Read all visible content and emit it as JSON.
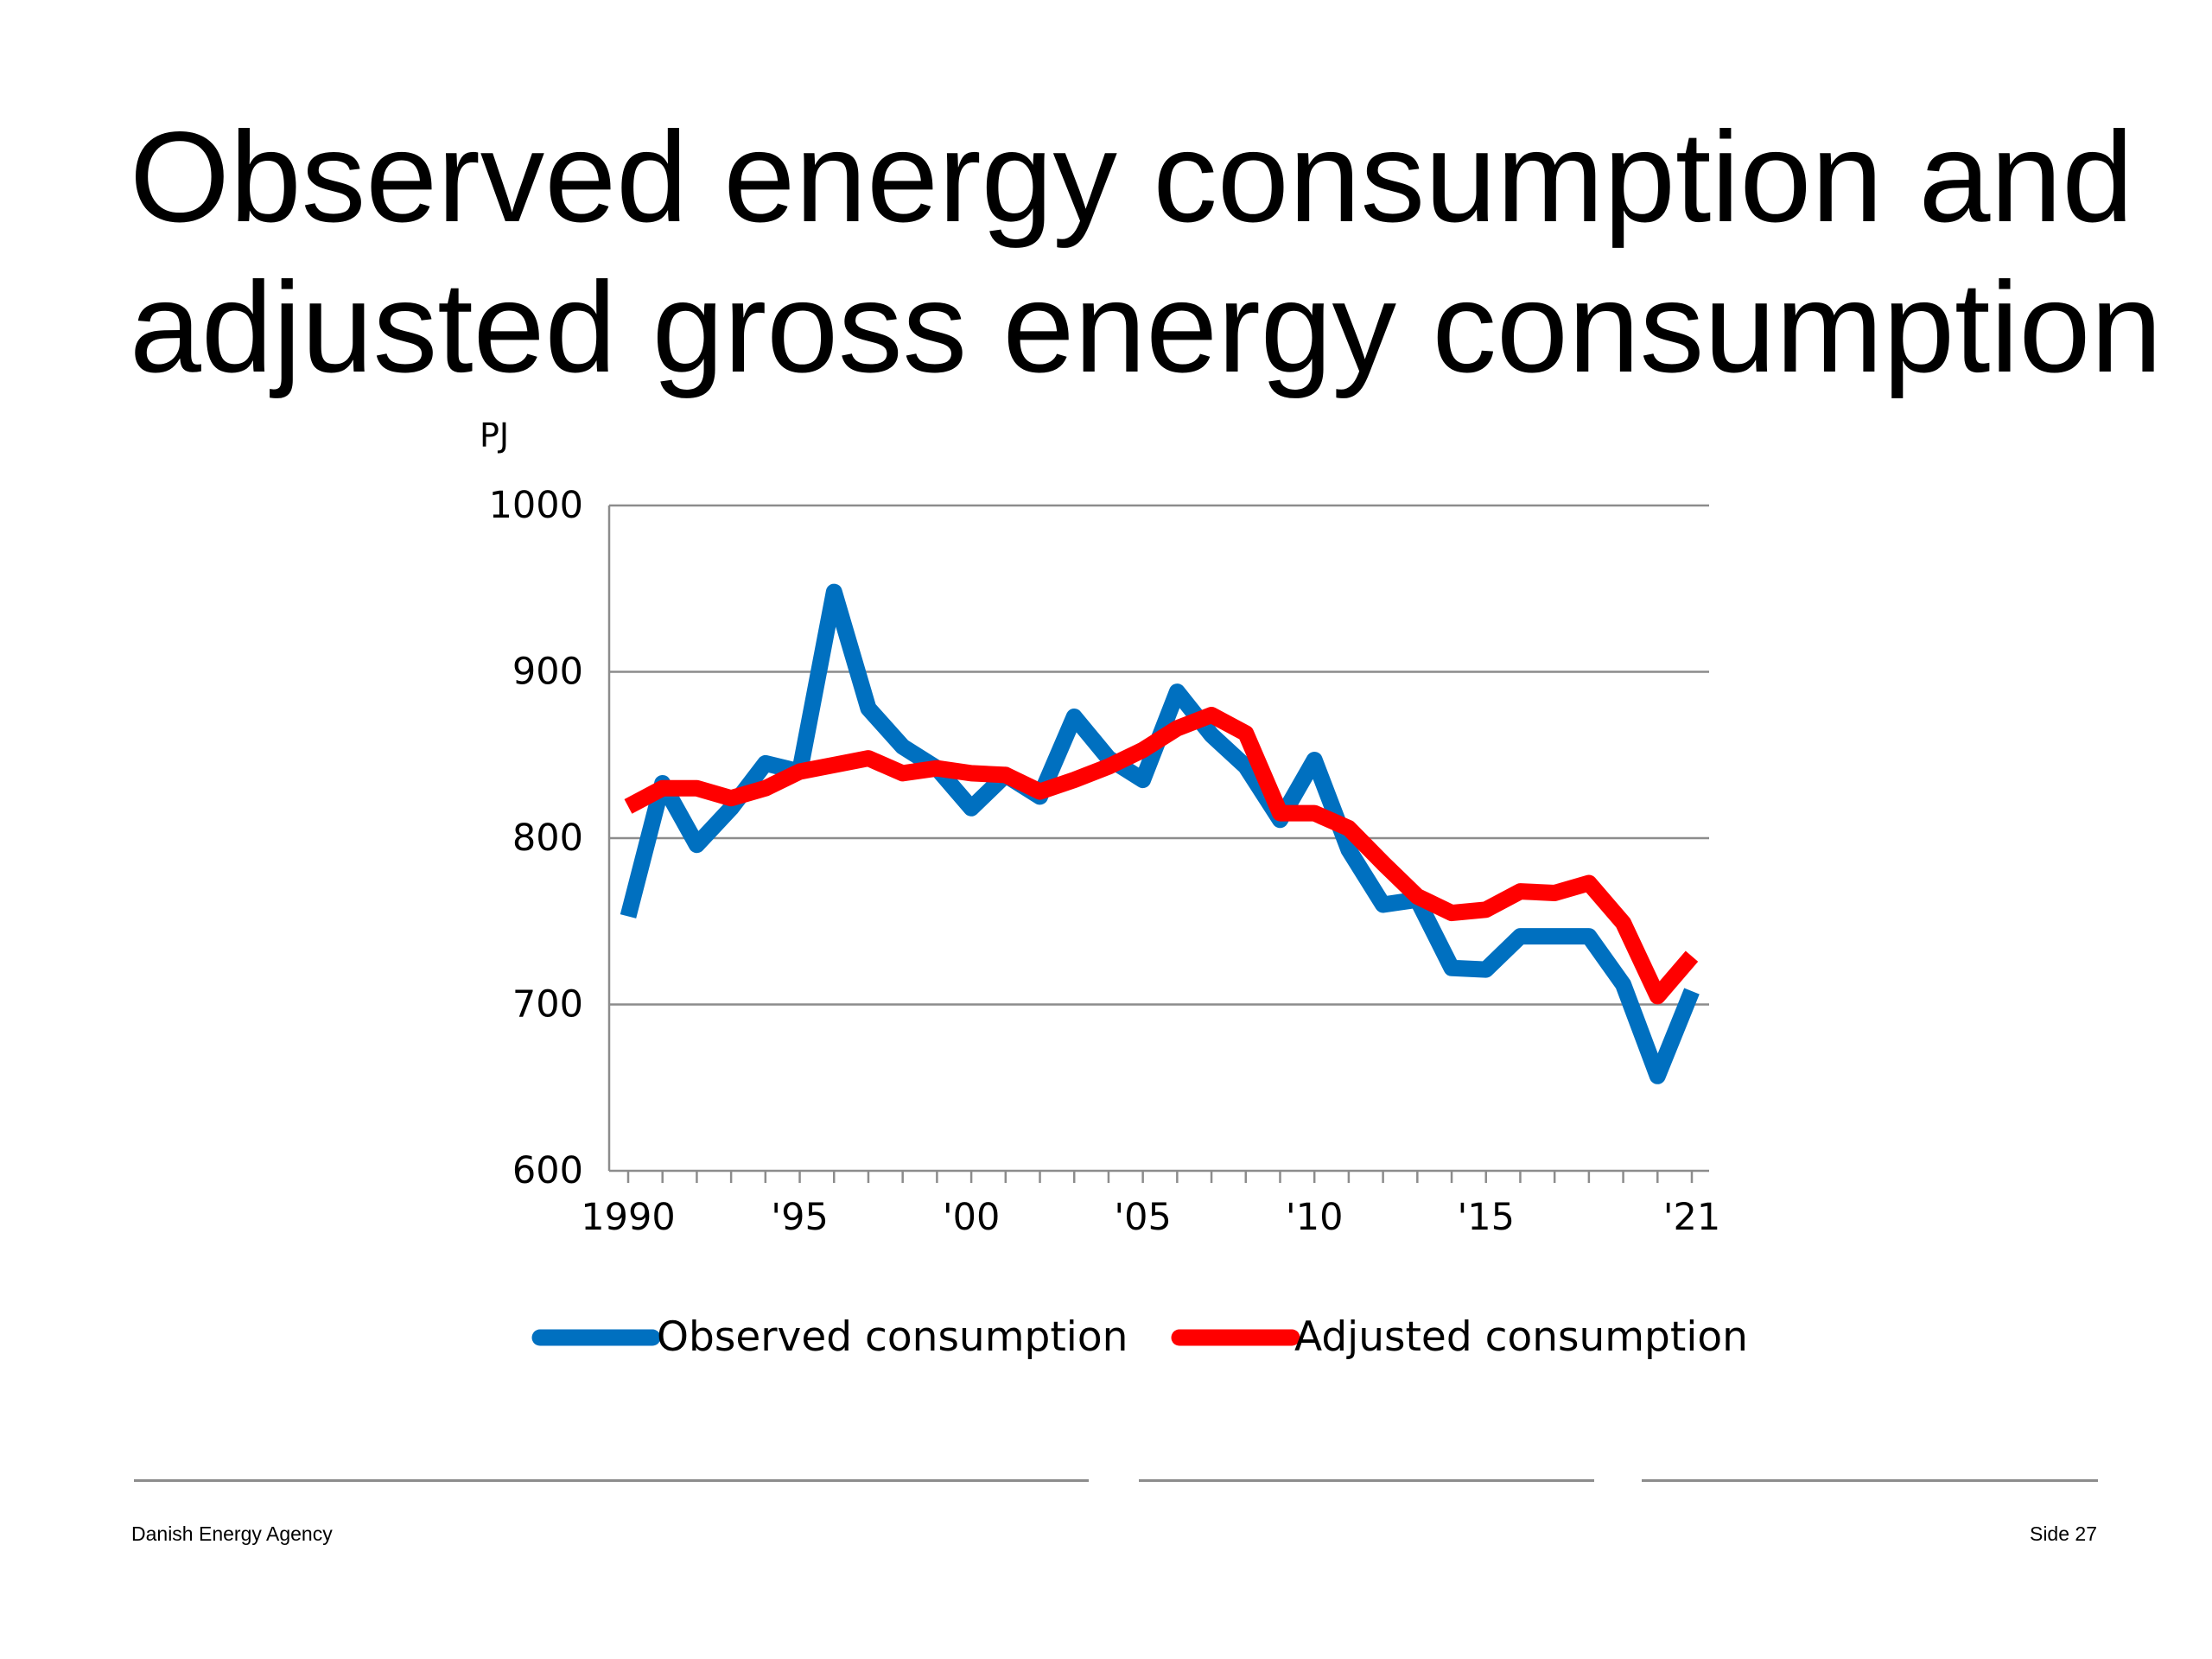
{
  "slide": {
    "title_line1": "Observed energy consumption and",
    "title_line2": "adjusted gross energy consumption"
  },
  "footer": {
    "organization": "Danish Energy Agency",
    "page_label": "Side 27"
  },
  "chart_data": {
    "type": "line",
    "ylabel": "PJ",
    "ylim": [
      600,
      1000
    ],
    "yticks": [
      600,
      700,
      800,
      900,
      1000
    ],
    "xlim": [
      1990,
      2021
    ],
    "xtick_labels": [
      {
        "year": 1990,
        "label": "1990"
      },
      {
        "year": 1995,
        "label": "'95"
      },
      {
        "year": 2000,
        "label": "'00"
      },
      {
        "year": 2005,
        "label": "'05"
      },
      {
        "year": 2010,
        "label": "'10"
      },
      {
        "year": 2015,
        "label": "'15"
      },
      {
        "year": 2021,
        "label": "'21"
      }
    ],
    "grid": "horizontal",
    "legend_position": "bottom",
    "x": [
      1990,
      1991,
      1992,
      1993,
      1994,
      1995,
      1996,
      1997,
      1998,
      1999,
      2000,
      2001,
      2002,
      2003,
      2004,
      2005,
      2006,
      2007,
      2008,
      2009,
      2010,
      2011,
      2012,
      2013,
      2014,
      2015,
      2016,
      2017,
      2018,
      2019,
      2020,
      2021
    ],
    "series": [
      {
        "name": "Observed consumption",
        "color": "#0070c0",
        "values": [
          753,
          833,
          796,
          818,
          845,
          840,
          948,
          878,
          855,
          842,
          818,
          838,
          825,
          873,
          848,
          835,
          888,
          862,
          843,
          811,
          847,
          793,
          760,
          763,
          722,
          721,
          741,
          741,
          741,
          712,
          657,
          708
        ]
      },
      {
        "name": "Adjusted consumption",
        "color": "#ff0000",
        "values": [
          819,
          830,
          830,
          824,
          830,
          840,
          844,
          848,
          839,
          842,
          839,
          838,
          828,
          835,
          843,
          853,
          866,
          874,
          863,
          815,
          815,
          806,
          785,
          765,
          755,
          757,
          768,
          767,
          773,
          749,
          705,
          729
        ]
      }
    ]
  }
}
